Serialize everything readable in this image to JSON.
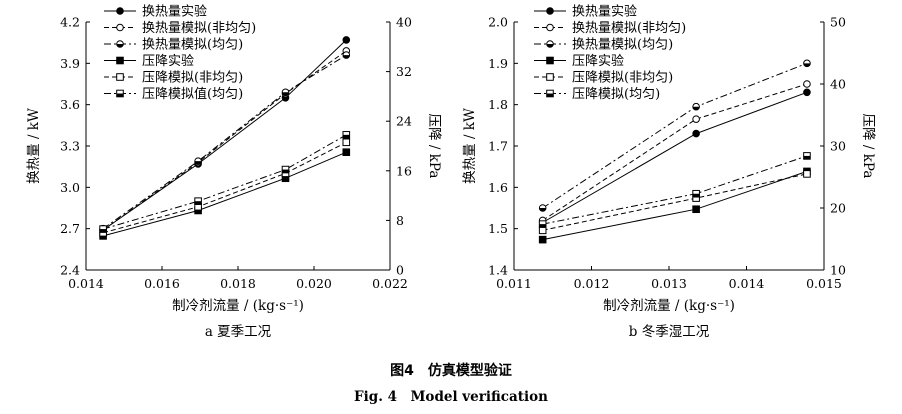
{
  "figure": {
    "caption_cn": "图4　仿真模型验证",
    "caption_en": "Fig. 4　Model verification"
  },
  "styles": {
    "series_colors": [
      "#000000",
      "#000000",
      "#000000",
      "#000000",
      "#000000",
      "#000000"
    ],
    "line_dash": [
      "solid",
      "dashed",
      "dash-dot",
      "solid",
      "dashed",
      "dash-dot"
    ],
    "markers": [
      "filled-circle",
      "open-circle",
      "half-circle",
      "filled-square",
      "open-square",
      "half-square"
    ]
  },
  "chart_data": [
    {
      "type": "line",
      "subtitle": "a 夏季工况",
      "xlabel": "制冷剂流量 / (kg·s⁻¹)",
      "ylabel_left": "换热量 / kW",
      "ylabel_right": "压降 / kPa",
      "xlim": [
        0.014,
        0.022
      ],
      "ylim_left": [
        2.4,
        4.2
      ],
      "ylim_right": [
        0,
        40
      ],
      "xticks": [
        "0.014",
        "0.016",
        "0.018",
        "0.020",
        "0.022"
      ],
      "yticks_left": [
        "2.4",
        "2.7",
        "3.0",
        "3.3",
        "3.6",
        "3.9",
        "4.2"
      ],
      "yticks_right": [
        "0",
        "8",
        "16",
        "24",
        "32",
        "40"
      ],
      "legend_position": "top-left",
      "x": [
        0.01445,
        0.01695,
        0.01925,
        0.02085
      ],
      "series": [
        {
          "name": "换热量实验",
          "axis": "left",
          "values": [
            2.69,
            3.17,
            3.65,
            4.07
          ]
        },
        {
          "name": "换热量模拟(非均匀)",
          "axis": "left",
          "values": [
            2.69,
            3.18,
            3.68,
            3.99
          ]
        },
        {
          "name": "换热量模拟(均匀)",
          "axis": "left",
          "values": [
            2.7,
            3.19,
            3.69,
            3.96
          ]
        },
        {
          "name": "压降实验",
          "axis": "right",
          "values": [
            5.5,
            9.6,
            14.8,
            19.0
          ]
        },
        {
          "name": "压降模拟(非均匀)",
          "axis": "right",
          "values": [
            6.0,
            10.2,
            15.6,
            20.6
          ]
        },
        {
          "name": "压降模拟值(均匀)",
          "axis": "right",
          "values": [
            6.6,
            11.1,
            16.2,
            21.8
          ]
        }
      ]
    },
    {
      "type": "line",
      "subtitle": "b 冬季湿工况",
      "xlabel": "制冷剂流量 / (kg·s⁻¹)",
      "ylabel_left": "换热量 / kW",
      "ylabel_right": "压降 / kPa",
      "xlim": [
        0.011,
        0.015
      ],
      "ylim_left": [
        1.4,
        2.0
      ],
      "ylim_right": [
        10,
        50
      ],
      "xticks": [
        "0.011",
        "0.012",
        "0.013",
        "0.014",
        "0.015"
      ],
      "yticks_left": [
        "1.4",
        "1.5",
        "1.6",
        "1.7",
        "1.8",
        "1.9",
        "2.0"
      ],
      "yticks_right": [
        "10",
        "20",
        "30",
        "40",
        "50"
      ],
      "legend_position": "top-left",
      "x": [
        0.01137,
        0.01335,
        0.01478
      ],
      "series": [
        {
          "name": "换热量实验",
          "axis": "left",
          "values": [
            1.515,
            1.73,
            1.83
          ]
        },
        {
          "name": "换热量模拟(非均匀)",
          "axis": "left",
          "values": [
            1.52,
            1.765,
            1.85
          ]
        },
        {
          "name": "换热量模拟(均匀)",
          "axis": "left",
          "values": [
            1.55,
            1.795,
            1.9
          ]
        },
        {
          "name": "压降实验",
          "axis": "right",
          "values": [
            14.9,
            19.8,
            25.9
          ]
        },
        {
          "name": "压降模拟(非均匀)",
          "axis": "right",
          "values": [
            16.4,
            21.6,
            25.5
          ]
        },
        {
          "name": "压降模拟(均匀)",
          "axis": "right",
          "values": [
            17.4,
            22.3,
            28.4
          ]
        }
      ]
    }
  ]
}
